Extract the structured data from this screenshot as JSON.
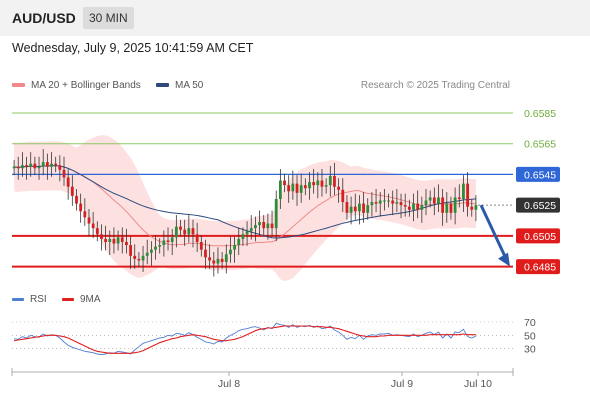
{
  "header": {
    "pair": "AUD/USD",
    "timeframe": "30 MIN"
  },
  "datetime": "Wednesday, July 9, 2025 10:41:59 AM CET",
  "legend": {
    "ma20": {
      "label": "MA 20 + Bollinger Bands",
      "color": "#f08a8a"
    },
    "ma50": {
      "label": "MA 50",
      "color": "#2e4a7d"
    },
    "credit": "Research © 2025 Trading Central"
  },
  "rsi_legend": {
    "rsi": {
      "label": "RSI",
      "color": "#4f7fd1"
    },
    "ma9": {
      "label": "9MA",
      "color": "#e02020"
    }
  },
  "chart_data": [
    {
      "type": "candlestick",
      "ylim": [
        0.6473,
        0.6598
      ],
      "x_labels": [
        "Jul 8",
        "Jul 9",
        "Jul 10"
      ],
      "levels": [
        {
          "value": 0.6585,
          "label": "0.6585",
          "style": "resistance-green",
          "color": "#8cc760"
        },
        {
          "value": 0.6565,
          "label": "0.6565",
          "style": "resistance-green",
          "color": "#8cc760"
        },
        {
          "value": 0.6545,
          "label": "0.6545",
          "style": "pivot",
          "color": "#2f66d8"
        },
        {
          "value": 0.6525,
          "label": "0.6525",
          "style": "last-price",
          "color": "#333333"
        },
        {
          "value": 0.6505,
          "label": "0.6505",
          "style": "target",
          "color": "#e01b1b"
        },
        {
          "value": 0.6485,
          "label": "0.6485",
          "style": "target",
          "color": "#e01b1b"
        }
      ],
      "close": [
        0.655,
        0.6549,
        0.6551,
        0.655,
        0.6552,
        0.6549,
        0.655,
        0.6553,
        0.655,
        0.6552,
        0.6551,
        0.6548,
        0.6543,
        0.6537,
        0.6531,
        0.6526,
        0.6521,
        0.6517,
        0.6513,
        0.651,
        0.6506,
        0.6503,
        0.6501,
        0.6503,
        0.65,
        0.6504,
        0.6501,
        0.6499,
        0.6492,
        0.649,
        0.6489,
        0.6492,
        0.6494,
        0.6496,
        0.6498,
        0.6499,
        0.6502,
        0.6501,
        0.6504,
        0.6511,
        0.6509,
        0.6506,
        0.651,
        0.6506,
        0.6501,
        0.6496,
        0.6491,
        0.6489,
        0.6487,
        0.649,
        0.6488,
        0.6493,
        0.6496,
        0.6499,
        0.6503,
        0.6506,
        0.6508,
        0.651,
        0.6512,
        0.6514,
        0.651,
        0.6513,
        0.651,
        0.6529,
        0.6541,
        0.6538,
        0.6534,
        0.6539,
        0.6533,
        0.6538,
        0.6536,
        0.654,
        0.6538,
        0.6541,
        0.6537,
        0.6538,
        0.6544,
        0.6537,
        0.6535,
        0.6527,
        0.652,
        0.6524,
        0.6521,
        0.6526,
        0.652,
        0.6525,
        0.6527,
        0.6526,
        0.6528,
        0.6528,
        0.6528,
        0.6526,
        0.6527,
        0.6525,
        0.6524,
        0.6522,
        0.6526,
        0.6522,
        0.6525,
        0.6528,
        0.653,
        0.6526,
        0.653,
        0.652,
        0.6526,
        0.652,
        0.653,
        0.6529,
        0.6539,
        0.6524,
        0.6522,
        0.6525
      ],
      "forecast_arrow": {
        "from": 0.6525,
        "to": 0.6485
      }
    },
    {
      "type": "line",
      "title": "RSI",
      "ylim": [
        10,
        85
      ],
      "y_ticks": [
        "70",
        "50",
        "30"
      ],
      "series": [
        {
          "name": "RSI",
          "values": [
            45,
            44,
            48,
            46,
            50,
            48,
            47,
            52,
            49,
            51,
            50,
            46,
            40,
            35,
            32,
            30,
            28,
            26,
            25,
            24,
            22,
            21,
            22,
            24,
            23,
            26,
            25,
            24,
            22,
            28,
            33,
            38,
            40,
            42,
            44,
            46,
            47,
            50,
            49,
            53,
            52,
            50,
            54,
            51,
            47,
            44,
            40,
            39,
            37,
            41,
            40,
            46,
            50,
            53,
            57,
            59,
            60,
            62,
            63,
            61,
            58,
            62,
            60,
            68,
            66,
            65,
            62,
            66,
            62,
            64,
            63,
            65,
            62,
            64,
            60,
            61,
            64,
            58,
            55,
            50,
            44,
            47,
            45,
            50,
            44,
            49,
            51,
            50,
            52,
            52,
            53,
            50,
            51,
            50,
            49,
            48,
            52,
            48,
            50,
            53,
            55,
            51,
            55,
            46,
            52,
            46,
            55,
            54,
            59,
            48,
            46,
            49
          ]
        },
        {
          "name": "9MA",
          "values": [
            42,
            43,
            44,
            45,
            46,
            47,
            48,
            49,
            50,
            50,
            50,
            49,
            48,
            46,
            43,
            40,
            37,
            34,
            31,
            28,
            26,
            25,
            24,
            23,
            23,
            23,
            23,
            23,
            23,
            24,
            25,
            27,
            30,
            33,
            36,
            39,
            41,
            43,
            45,
            46,
            48,
            49,
            50,
            51,
            50,
            49,
            48,
            46,
            44,
            43,
            42,
            42,
            43,
            44,
            46,
            48,
            51,
            54,
            57,
            59,
            60,
            61,
            61,
            62,
            63,
            64,
            64,
            64,
            64,
            64,
            64,
            64,
            63,
            63,
            63,
            62,
            62,
            61,
            60,
            58,
            56,
            54,
            52,
            50,
            49,
            48,
            48,
            48,
            49,
            49,
            50,
            50,
            50,
            50,
            50,
            50,
            50,
            50,
            50,
            50,
            51,
            51,
            51,
            51,
            51,
            51,
            51,
            51,
            52,
            51,
            51,
            51
          ]
        }
      ]
    }
  ]
}
